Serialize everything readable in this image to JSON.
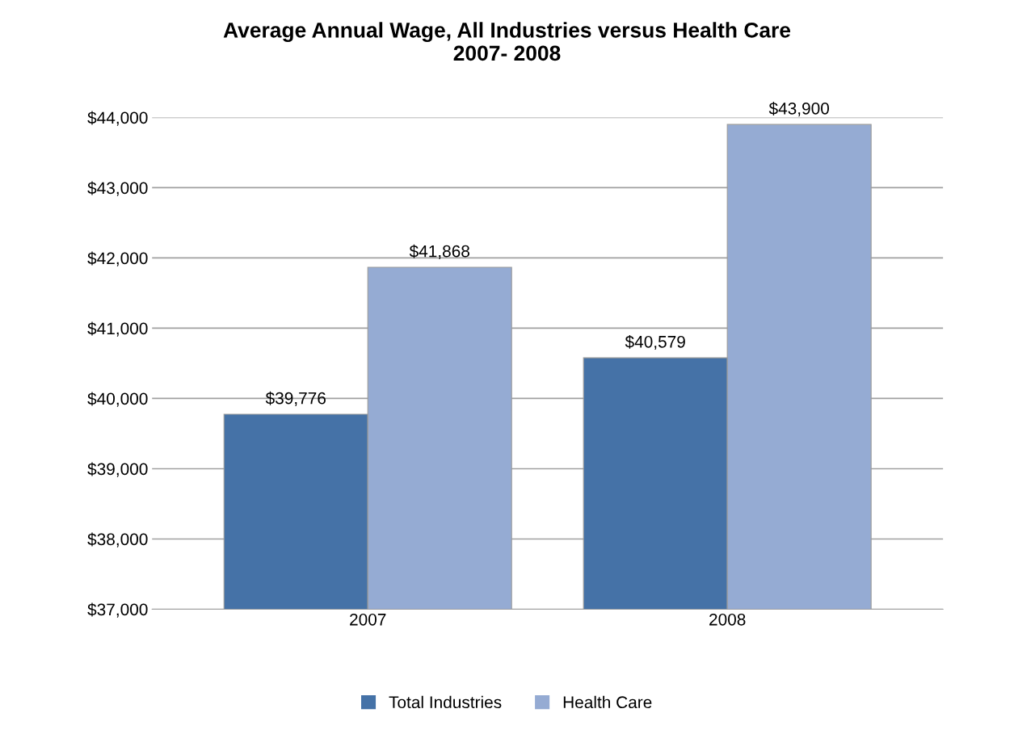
{
  "chart_data": {
    "type": "bar",
    "title": "Average Annual Wage, All Industries versus Health Care\n2007- 2008",
    "categories": [
      "2007",
      "2008"
    ],
    "series": [
      {
        "name": "Total Industries",
        "color": "#4572a7",
        "values": [
          39776,
          40579
        ],
        "value_labels": [
          "$39,776",
          "$40,579"
        ]
      },
      {
        "name": "Health Care",
        "color": "#95abd3",
        "values": [
          41868,
          43900
        ],
        "value_labels": [
          "$41,868",
          "$43,900"
        ]
      }
    ],
    "ylim": [
      37000,
      44000
    ],
    "yticks": [
      {
        "value": 37000,
        "label": "$37,000"
      },
      {
        "value": 38000,
        "label": "$38,000"
      },
      {
        "value": 39000,
        "label": "$39,000"
      },
      {
        "value": 40000,
        "label": "$40,000"
      },
      {
        "value": 41000,
        "label": "$41,000"
      },
      {
        "value": 42000,
        "label": "$42,000"
      },
      {
        "value": 43000,
        "label": "$43,000"
      },
      {
        "value": 44000,
        "label": "$44,000"
      }
    ],
    "grid": "y",
    "legend": "bottom"
  }
}
